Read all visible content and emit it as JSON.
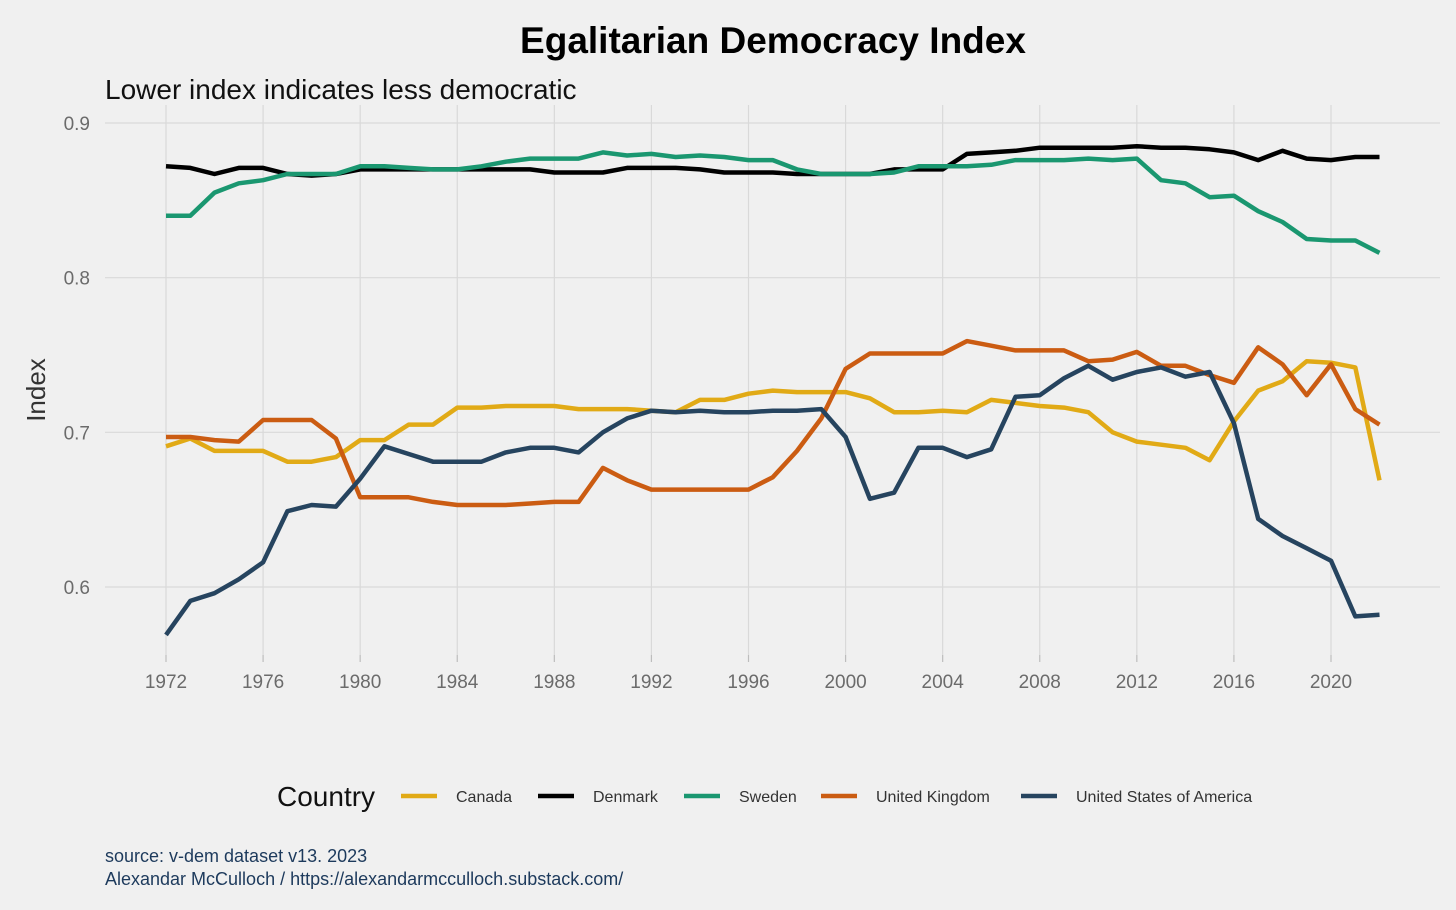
{
  "chart_data": {
    "type": "line",
    "title": "Egalitarian Democracy Index",
    "subtitle": "Lower index indicates less democratic",
    "xlabel": "",
    "ylabel": "Index",
    "xlim": [
      1972,
      2022
    ],
    "ylim": [
      0.555,
      0.905
    ],
    "x_ticks": [
      1972,
      1976,
      1980,
      1984,
      1988,
      1992,
      1996,
      2000,
      2004,
      2008,
      2012,
      2016,
      2020
    ],
    "y_ticks": [
      0.6,
      0.7,
      0.8,
      0.9
    ],
    "y_tick_labels": [
      "0.6",
      "0.7",
      "0.8",
      "0.9"
    ],
    "grid": true,
    "legend_title": "Country",
    "legend_position": "bottom",
    "x": [
      1972,
      1973,
      1974,
      1975,
      1976,
      1977,
      1978,
      1979,
      1980,
      1981,
      1982,
      1983,
      1984,
      1985,
      1986,
      1987,
      1988,
      1989,
      1990,
      1991,
      1992,
      1993,
      1994,
      1995,
      1996,
      1997,
      1998,
      1999,
      2000,
      2001,
      2002,
      2003,
      2004,
      2005,
      2006,
      2007,
      2008,
      2009,
      2010,
      2011,
      2012,
      2013,
      2014,
      2015,
      2016,
      2017,
      2018,
      2019,
      2020,
      2021,
      2022
    ],
    "series": [
      {
        "name": "Canada",
        "color": "#E1AA16",
        "values": [
          0.691,
          0.696,
          0.688,
          0.688,
          0.688,
          0.681,
          0.681,
          0.684,
          0.695,
          0.695,
          0.705,
          0.705,
          0.716,
          0.716,
          0.717,
          0.717,
          0.717,
          0.715,
          0.715,
          0.715,
          0.714,
          0.713,
          0.721,
          0.721,
          0.725,
          0.727,
          0.726,
          0.726,
          0.726,
          0.722,
          0.713,
          0.713,
          0.714,
          0.713,
          0.721,
          0.719,
          0.717,
          0.716,
          0.713,
          0.7,
          0.694,
          0.692,
          0.69,
          0.682,
          0.707,
          0.727,
          0.733,
          0.746,
          0.745,
          0.742,
          0.669
        ]
      },
      {
        "name": "Denmark",
        "color": "#000000",
        "values": [
          0.872,
          0.871,
          0.867,
          0.871,
          0.871,
          0.867,
          0.866,
          0.867,
          0.87,
          0.87,
          0.87,
          0.87,
          0.87,
          0.87,
          0.87,
          0.87,
          0.868,
          0.868,
          0.868,
          0.871,
          0.871,
          0.871,
          0.87,
          0.868,
          0.868,
          0.868,
          0.867,
          0.867,
          0.867,
          0.867,
          0.87,
          0.87,
          0.87,
          0.88,
          0.881,
          0.882,
          0.884,
          0.884,
          0.884,
          0.884,
          0.885,
          0.884,
          0.884,
          0.883,
          0.881,
          0.876,
          0.882,
          0.877,
          0.876,
          0.878,
          0.878
        ]
      },
      {
        "name": "Sweden",
        "color": "#1A9770",
        "values": [
          0.84,
          0.84,
          0.855,
          0.861,
          0.863,
          0.867,
          0.867,
          0.867,
          0.872,
          0.872,
          0.871,
          0.87,
          0.87,
          0.872,
          0.875,
          0.877,
          0.877,
          0.877,
          0.881,
          0.879,
          0.88,
          0.878,
          0.879,
          0.878,
          0.876,
          0.876,
          0.87,
          0.867,
          0.867,
          0.867,
          0.868,
          0.872,
          0.872,
          0.872,
          0.873,
          0.876,
          0.876,
          0.876,
          0.877,
          0.876,
          0.877,
          0.863,
          0.861,
          0.852,
          0.853,
          0.843,
          0.836,
          0.825,
          0.824,
          0.824,
          0.816
        ]
      },
      {
        "name": "United Kingdom",
        "color": "#CB5C12",
        "values": [
          0.697,
          0.697,
          0.695,
          0.694,
          0.708,
          0.708,
          0.708,
          0.696,
          0.658,
          0.658,
          0.658,
          0.655,
          0.653,
          0.653,
          0.653,
          0.654,
          0.655,
          0.655,
          0.677,
          0.669,
          0.663,
          0.663,
          0.663,
          0.663,
          0.663,
          0.671,
          0.688,
          0.709,
          0.741,
          0.751,
          0.751,
          0.751,
          0.751,
          0.759,
          0.756,
          0.753,
          0.753,
          0.753,
          0.746,
          0.747,
          0.752,
          0.743,
          0.743,
          0.737,
          0.732,
          0.755,
          0.744,
          0.724,
          0.744,
          0.715,
          0.705
        ]
      },
      {
        "name": "United States of America",
        "color": "#26445F",
        "values": [
          0.569,
          0.591,
          0.596,
          0.605,
          0.616,
          0.649,
          0.653,
          0.652,
          0.67,
          0.691,
          0.686,
          0.681,
          0.681,
          0.681,
          0.687,
          0.69,
          0.69,
          0.687,
          0.7,
          0.709,
          0.714,
          0.713,
          0.714,
          0.713,
          0.713,
          0.714,
          0.714,
          0.715,
          0.697,
          0.657,
          0.661,
          0.69,
          0.69,
          0.684,
          0.689,
          0.723,
          0.724,
          0.735,
          0.743,
          0.734,
          0.739,
          0.742,
          0.736,
          0.739,
          0.706,
          0.644,
          0.633,
          0.625,
          0.617,
          0.581,
          0.582
        ]
      }
    ]
  },
  "caption": {
    "source": "source: v-dem dataset v13. 2023",
    "author": "Alexandar McCulloch / https://alexandarmcculloch.substack.com/"
  }
}
